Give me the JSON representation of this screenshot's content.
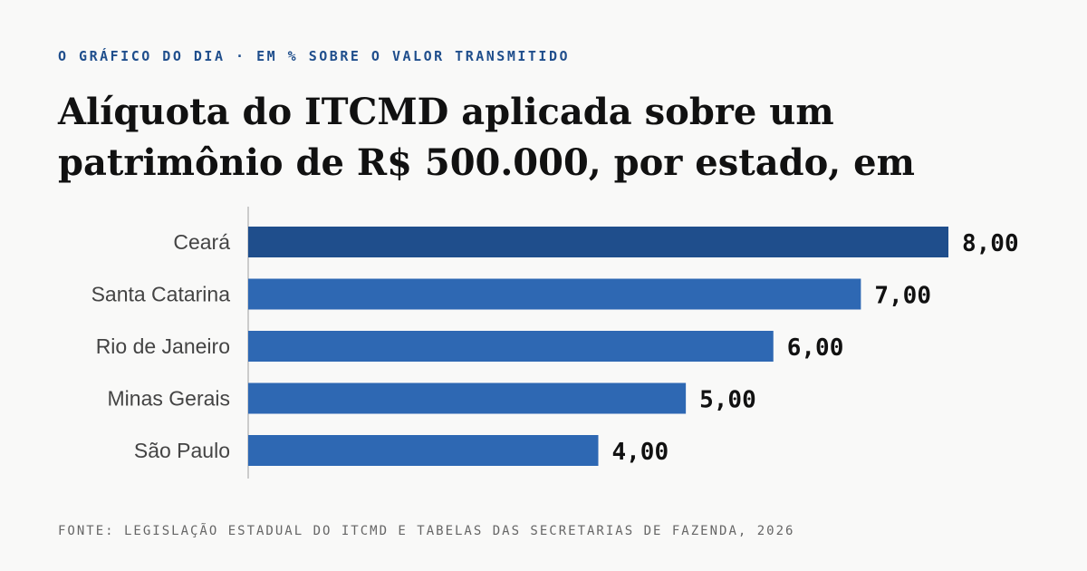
{
  "kicker": "O GRÁFICO DO DIA · EM % SOBRE O VALOR TRANSMITIDO",
  "source": "FONTE: LEGISLAÇÃO ESTADUAL DO ITCMD E TABELAS DAS SECRETARIAS DE FAZENDA, 2026",
  "chart_data": {
    "type": "bar",
    "orientation": "horizontal",
    "title": "Alíquota do ITCMD aplicada sobre um patrimônio de R$ 500.000, por estado, em",
    "categories": [
      "Ceará",
      "Santa Catarina",
      "Rio de Janeiro",
      "Minas Gerais",
      "São Paulo"
    ],
    "values": [
      8,
      7,
      6,
      5,
      4
    ],
    "value_labels": [
      "8,00",
      "7,00",
      "6,00",
      "5,00",
      "4,00"
    ],
    "xlim": [
      0,
      8
    ],
    "grid": false,
    "highlight_index": 0,
    "colors": {
      "highlight": "#1f4e8c",
      "bar": "#2e68b3",
      "axis": "#cccccc"
    }
  }
}
